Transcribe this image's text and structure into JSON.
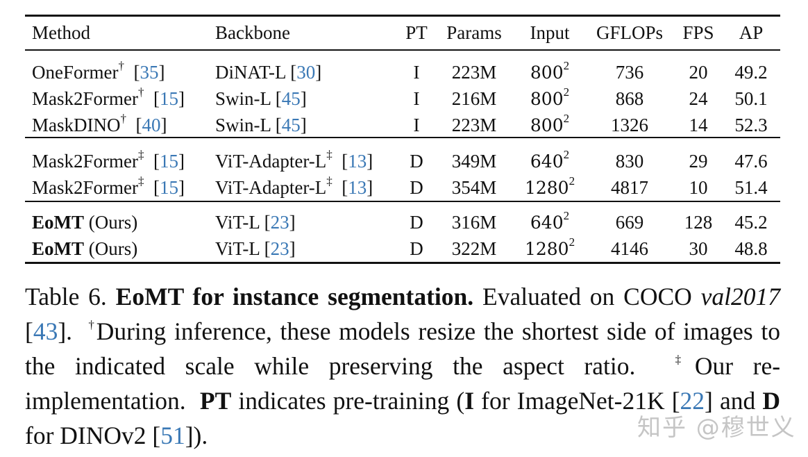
{
  "table": {
    "headers": [
      "Method",
      "Backbone",
      "PT",
      "Params",
      "Input",
      "GFLOPs",
      "FPS",
      "AP"
    ],
    "groups": [
      [
        {
          "method": "OneFormer",
          "method_bold": "",
          "method_suffix": "",
          "method_sup": "†",
          "method_cite": "35",
          "backbone": "DiNAT-L",
          "backbone_sup": "",
          "backbone_cite": "30",
          "pt": "I",
          "params": "223M",
          "input": "800",
          "input_exp": "2",
          "gflops": "736",
          "fps": "20",
          "ap": "49.2"
        },
        {
          "method": "Mask2Former",
          "method_bold": "",
          "method_suffix": "",
          "method_sup": "†",
          "method_cite": "15",
          "backbone": "Swin-L",
          "backbone_sup": "",
          "backbone_cite": "45",
          "pt": "I",
          "params": "216M",
          "input": "800",
          "input_exp": "2",
          "gflops": "868",
          "fps": "24",
          "ap": "50.1"
        },
        {
          "method": "MaskDINO",
          "method_bold": "",
          "method_suffix": "",
          "method_sup": "†",
          "method_cite": "40",
          "backbone": "Swin-L",
          "backbone_sup": "",
          "backbone_cite": "45",
          "pt": "I",
          "params": "223M",
          "input": "800",
          "input_exp": "2",
          "gflops": "1326",
          "fps": "14",
          "ap": "52.3"
        }
      ],
      [
        {
          "method": "Mask2Former",
          "method_bold": "",
          "method_suffix": "",
          "method_sup": "‡",
          "method_cite": "15",
          "backbone": "ViT-Adapter-L",
          "backbone_sup": "‡",
          "backbone_cite": "13",
          "pt": "D",
          "params": "349M",
          "input": "640",
          "input_exp": "2",
          "gflops": "830",
          "fps": "29",
          "ap": "47.6"
        },
        {
          "method": "Mask2Former",
          "method_bold": "",
          "method_suffix": "",
          "method_sup": "‡",
          "method_cite": "15",
          "backbone": "ViT-Adapter-L",
          "backbone_sup": "‡",
          "backbone_cite": "13",
          "pt": "D",
          "params": "354M",
          "input": "1280",
          "input_exp": "2",
          "gflops": "4817",
          "fps": "10",
          "ap": "51.4"
        }
      ],
      [
        {
          "method": "",
          "method_bold": "EoMT",
          "method_suffix": "(Ours)",
          "method_sup": "",
          "method_cite": "",
          "backbone": "ViT-L",
          "backbone_sup": "",
          "backbone_cite": "23",
          "pt": "D",
          "params": "316M",
          "input": "640",
          "input_exp": "2",
          "gflops": "669",
          "fps": "128",
          "ap": "45.2"
        },
        {
          "method": "",
          "method_bold": "EoMT",
          "method_suffix": "(Ours)",
          "method_sup": "",
          "method_cite": "",
          "backbone": "ViT-L",
          "backbone_sup": "",
          "backbone_cite": "23",
          "pt": "D",
          "params": "322M",
          "input": "1280",
          "input_exp": "2",
          "gflops": "4146",
          "fps": "30",
          "ap": "48.8"
        }
      ]
    ]
  },
  "caption": {
    "label": "Table 6.",
    "title": "EoMT for instance segmentation.",
    "t1": "Evaluated on COCO",
    "val": "val2017",
    "cite1": "43",
    "dagger": "†",
    "t2": "During inference, these models resize the shortest side of images to the indicated scale while preserving the aspect ratio.",
    "ddagger": "‡",
    "t3": "Our re-implementation.",
    "pt": "PT",
    "t4": "indicates pre-training (",
    "i": "I",
    "t5": "for ImageNet-21K",
    "cite2": "22",
    "t6": "and",
    "d": "D",
    "t7": "for DINOv2",
    "cite3": "51",
    "t8": "])."
  },
  "watermark": "知乎 @穆世义",
  "colors": {
    "citation": "#3a78b5",
    "text": "#111111"
  }
}
